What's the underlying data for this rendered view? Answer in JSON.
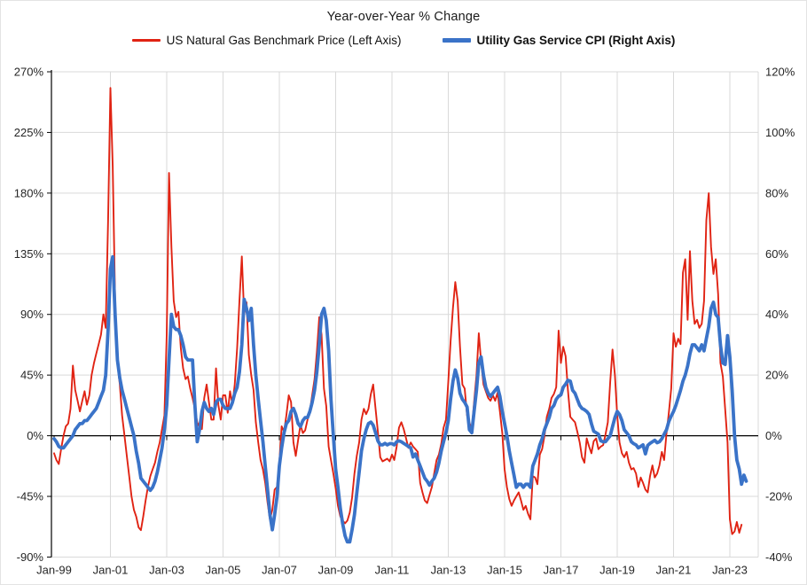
{
  "chart_data": {
    "type": "line",
    "title": "Year-over-Year % Change",
    "x_axis": {
      "tick_labels": [
        "Jan-99",
        "Jan-01",
        "Jan-03",
        "Jan-05",
        "Jan-07",
        "Jan-09",
        "Jan-11",
        "Jan-13",
        "Jan-15",
        "Jan-17",
        "Jan-19",
        "Jan-21",
        "Jan-23"
      ],
      "monthly_start": "1999-01",
      "months_between_ticks": 24
    },
    "y_left_axis": {
      "tick_labels": [
        "270%",
        "225%",
        "180%",
        "135%",
        "90%",
        "45%",
        "0%",
        "-45%",
        "-90%"
      ],
      "tick_values": [
        270,
        225,
        180,
        135,
        90,
        45,
        0,
        -45,
        -90
      ],
      "range": [
        -90,
        270
      ]
    },
    "y_right_axis": {
      "tick_labels": [
        "120%",
        "100%",
        "80%",
        "60%",
        "40%",
        "20%",
        "0%",
        "-20%",
        "-40%"
      ],
      "tick_values": [
        120,
        100,
        80,
        60,
        40,
        20,
        0,
        -20,
        -40
      ],
      "range": [
        -40,
        120
      ]
    },
    "grid": {
      "show": true,
      "color": "#d9d9d9",
      "zero_line_color": "#000000"
    },
    "legend_position": "top",
    "series": [
      {
        "name": "US Natural Gas Benchmark Price (Left Axis)",
        "axis": "left",
        "color": "#e02313",
        "width": 1.9,
        "values": [
          -13,
          -18,
          -21,
          -10,
          0,
          7,
          9,
          20,
          52,
          34,
          26,
          18,
          26,
          33,
          23,
          30,
          45,
          54,
          61,
          68,
          75,
          90,
          80,
          160,
          258,
          200,
          100,
          54,
          38,
          15,
          0,
          -15,
          -30,
          -45,
          -55,
          -60,
          -68,
          -70,
          -60,
          -48,
          -38,
          -30,
          -25,
          -20,
          -12,
          -5,
          5,
          15,
          75,
          195,
          140,
          100,
          88,
          92,
          65,
          50,
          42,
          44,
          35,
          28,
          20,
          10,
          6,
          5,
          28,
          38,
          25,
          12,
          12,
          50,
          23,
          12,
          30,
          30,
          17,
          33,
          23,
          38,
          65,
          100,
          133,
          90,
          99,
          60,
          45,
          34,
          10,
          -5,
          -18,
          -25,
          -35,
          -50,
          -62,
          -55,
          -40,
          -38,
          -20,
          7,
          3,
          15,
          30,
          25,
          -5,
          -15,
          -3,
          8,
          2,
          4,
          12,
          18,
          30,
          42,
          62,
          88,
          75,
          35,
          22,
          -8,
          -18,
          -28,
          -39,
          -52,
          -60,
          -63,
          -65,
          -63,
          -57,
          -46,
          -28,
          -15,
          -5,
          12,
          20,
          16,
          20,
          31,
          38,
          20,
          3,
          -16,
          -19,
          -18,
          -17,
          -19,
          -14,
          -18,
          -8,
          6,
          10,
          5,
          -2,
          -9,
          -5,
          -8,
          -10,
          -12,
          -35,
          -42,
          -48,
          -50,
          -44,
          -38,
          -28,
          -18,
          -14,
          -6,
          6,
          12,
          40,
          70,
          95,
          114,
          100,
          66,
          38,
          35,
          15,
          10,
          4,
          25,
          45,
          76,
          55,
          38,
          33,
          28,
          26,
          30,
          26,
          32,
          18,
          2,
          -25,
          -38,
          -47,
          -52,
          -48,
          -45,
          -42,
          -48,
          -55,
          -52,
          -58,
          -62,
          -30,
          -31,
          -36,
          -14,
          -10,
          0,
          14,
          20,
          28,
          31,
          36,
          78,
          54,
          66,
          59,
          34,
          14,
          12,
          10,
          3,
          -5,
          -16,
          -20,
          -2,
          -8,
          -13,
          -4,
          -2,
          -10,
          -8,
          -7,
          1,
          10,
          40,
          64,
          45,
          15,
          -5,
          -13,
          -16,
          -12,
          -20,
          -25,
          -24,
          -28,
          -38,
          -31,
          -35,
          -40,
          -42,
          -30,
          -22,
          -31,
          -28,
          -22,
          -12,
          -18,
          2,
          17,
          35,
          76,
          66,
          72,
          68,
          121,
          131,
          86,
          137,
          100,
          83,
          86,
          80,
          83,
          100,
          160,
          180,
          140,
          120,
          131,
          105,
          54,
          44,
          20,
          -5,
          -62,
          -73,
          -71,
          -64,
          -72,
          -66
        ]
      },
      {
        "name": "Utility Gas Service CPI (Right Axis)",
        "axis": "right",
        "color": "#3a73c8",
        "width": 3.8,
        "values": [
          -1,
          -2,
          -3.5,
          -4,
          -4,
          -3,
          -2,
          -1,
          0,
          2,
          3,
          4,
          4,
          5,
          5,
          6,
          7,
          8,
          9,
          11,
          13,
          15,
          20,
          35,
          55,
          59,
          40,
          25,
          19,
          15,
          12,
          9,
          6,
          3,
          0,
          -5,
          -9,
          -14,
          -15,
          -16,
          -17,
          -18,
          -17,
          -15,
          -12,
          -8,
          -4,
          2,
          10,
          25,
          40,
          36,
          35,
          35,
          33,
          30,
          26,
          25,
          25,
          25,
          10,
          -2,
          2,
          8,
          11,
          9,
          8,
          9,
          7,
          11,
          12,
          12,
          10,
          9,
          9,
          9,
          11,
          14,
          16,
          21,
          30,
          45,
          42,
          38,
          42,
          30,
          20,
          12,
          5,
          -2,
          -10,
          -18,
          -26,
          -31,
          -26,
          -20,
          -10,
          -4,
          1,
          4,
          5,
          8,
          9,
          7,
          4,
          3,
          5,
          6,
          6,
          8,
          11,
          15,
          21,
          30,
          40,
          42,
          38,
          28,
          12,
          0,
          -11,
          -17,
          -24,
          -29,
          -33,
          -35,
          -35,
          -31,
          -26,
          -19,
          -12,
          -5,
          -1,
          2,
          4,
          4.5,
          3.5,
          1,
          -1.7,
          -3,
          -3,
          -2.5,
          -3,
          -2.6,
          -2.6,
          -3,
          -2,
          -1.7,
          -2,
          -2.5,
          -3,
          -3.5,
          -4,
          -7,
          -6,
          -8,
          -10,
          -12,
          -14,
          -15,
          -16.3,
          -15,
          -14,
          -12,
          -9,
          -5,
          -2,
          1,
          5,
          12,
          18,
          21.7,
          19,
          14,
          12,
          11,
          9.5,
          2,
          1,
          8,
          15,
          24,
          26,
          20,
          16,
          14,
          13,
          14,
          15,
          16,
          13,
          8,
          4,
          0,
          -5,
          -9,
          -13,
          -17,
          -16,
          -16,
          -17,
          -16,
          -16,
          -17,
          -10,
          -8,
          -6,
          -3,
          -1,
          2,
          4,
          6,
          9,
          10,
          12,
          13,
          13.5,
          16,
          17,
          18.3,
          18,
          15,
          14,
          12,
          10,
          9,
          8.6,
          8,
          7,
          4,
          1.5,
          1,
          0.5,
          -1.7,
          -2,
          -2,
          -1,
          0,
          3,
          6,
          8,
          7,
          5,
          2,
          1,
          0,
          -2,
          -2.6,
          -3,
          -4,
          -3.5,
          -3,
          -6,
          -3.2,
          -2.5,
          -2,
          -1.5,
          -2.3,
          -2,
          -1,
          0.5,
          2,
          4.7,
          6.5,
          8,
          10,
          12.5,
          15,
          18,
          20,
          23,
          27,
          30,
          30,
          29,
          28,
          30,
          28,
          32,
          36,
          42,
          44,
          40,
          39,
          30,
          24,
          23.5,
          33,
          26,
          15,
          0,
          -8,
          -11,
          -16,
          -13,
          -15
        ]
      }
    ]
  }
}
